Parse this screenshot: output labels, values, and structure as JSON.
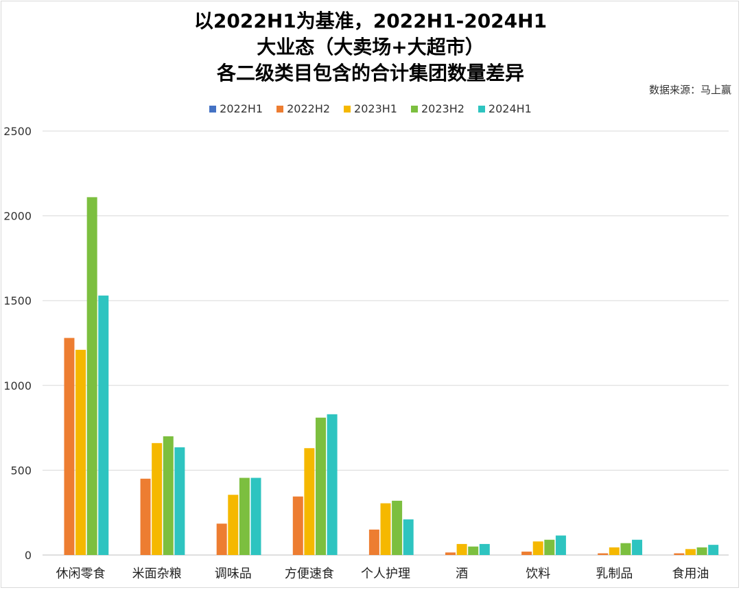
{
  "chart_data": {
    "type": "bar",
    "title": [
      "以2022H1为基准，2022H1-2024H1",
      "大业态（大卖场+大超市）",
      "各二级类目包含的合计集团数量差异"
    ],
    "source": "数据来源：马上赢",
    "categories": [
      "休闲零食",
      "米面杂粮",
      "调味品",
      "方便速食",
      "个人护理",
      "酒",
      "饮料",
      "乳制品",
      "食用油"
    ],
    "series": [
      {
        "name": "2022H1",
        "color": "#4472c4",
        "values": [
          0,
          0,
          0,
          0,
          0,
          0,
          0,
          0,
          0
        ]
      },
      {
        "name": "2022H2",
        "color": "#ed7d31",
        "values": [
          1280,
          450,
          185,
          345,
          150,
          15,
          20,
          10,
          10
        ]
      },
      {
        "name": "2023H1",
        "color": "#f5b800",
        "values": [
          1210,
          660,
          355,
          630,
          305,
          65,
          80,
          45,
          35
        ]
      },
      {
        "name": "2023H2",
        "color": "#7cbf3f",
        "values": [
          2110,
          700,
          455,
          810,
          320,
          50,
          90,
          70,
          45
        ]
      },
      {
        "name": "2024H1",
        "color": "#2ec4c0",
        "values": [
          1530,
          635,
          455,
          830,
          210,
          65,
          115,
          90,
          60
        ]
      }
    ],
    "ylim": [
      0,
      2500
    ],
    "yticks": [
      "0",
      "500",
      "1000",
      "1500",
      "2000",
      "2500"
    ],
    "grid": true,
    "legend": "top"
  }
}
